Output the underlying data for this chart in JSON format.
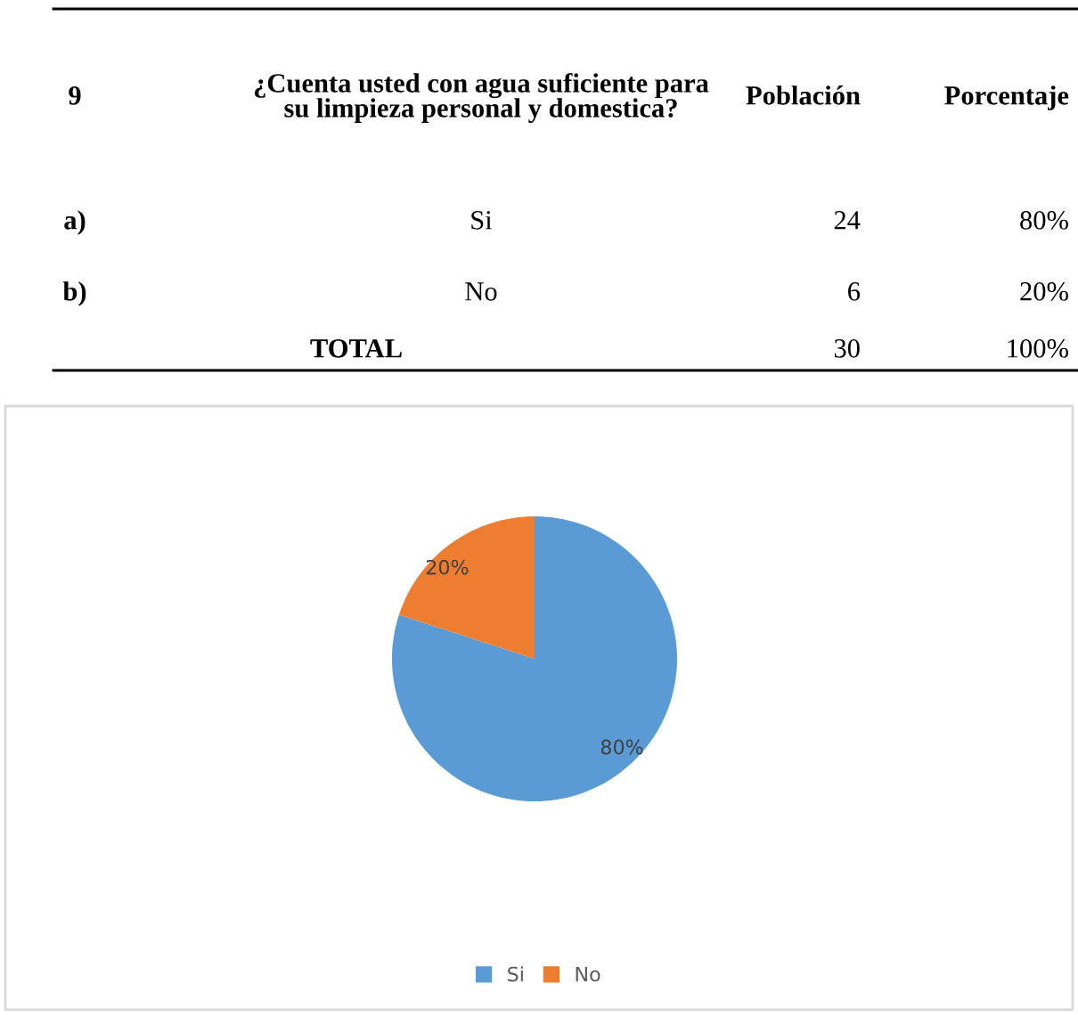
{
  "chart_data": [
    {
      "type": "other",
      "annotations": [
        "9",
        "¿Cuenta usted con agua suficiente para\nsu limpieza personal y domestica?",
        "Población",
        "Porcentaje",
        "a)",
        "Si",
        "24",
        "80%",
        "b)",
        "No",
        "6",
        "20%",
        "TOTAL",
        "30",
        "100%"
      ]
    },
    {
      "type": "pie",
      "categories": [
        "Si",
        "No"
      ],
      "values": [
        80,
        20
      ],
      "colors": [
        "#5b9bd5",
        "#ed7d31"
      ],
      "value_labels": [
        "80%",
        "20%"
      ],
      "legend": "bottom"
    }
  ]
}
